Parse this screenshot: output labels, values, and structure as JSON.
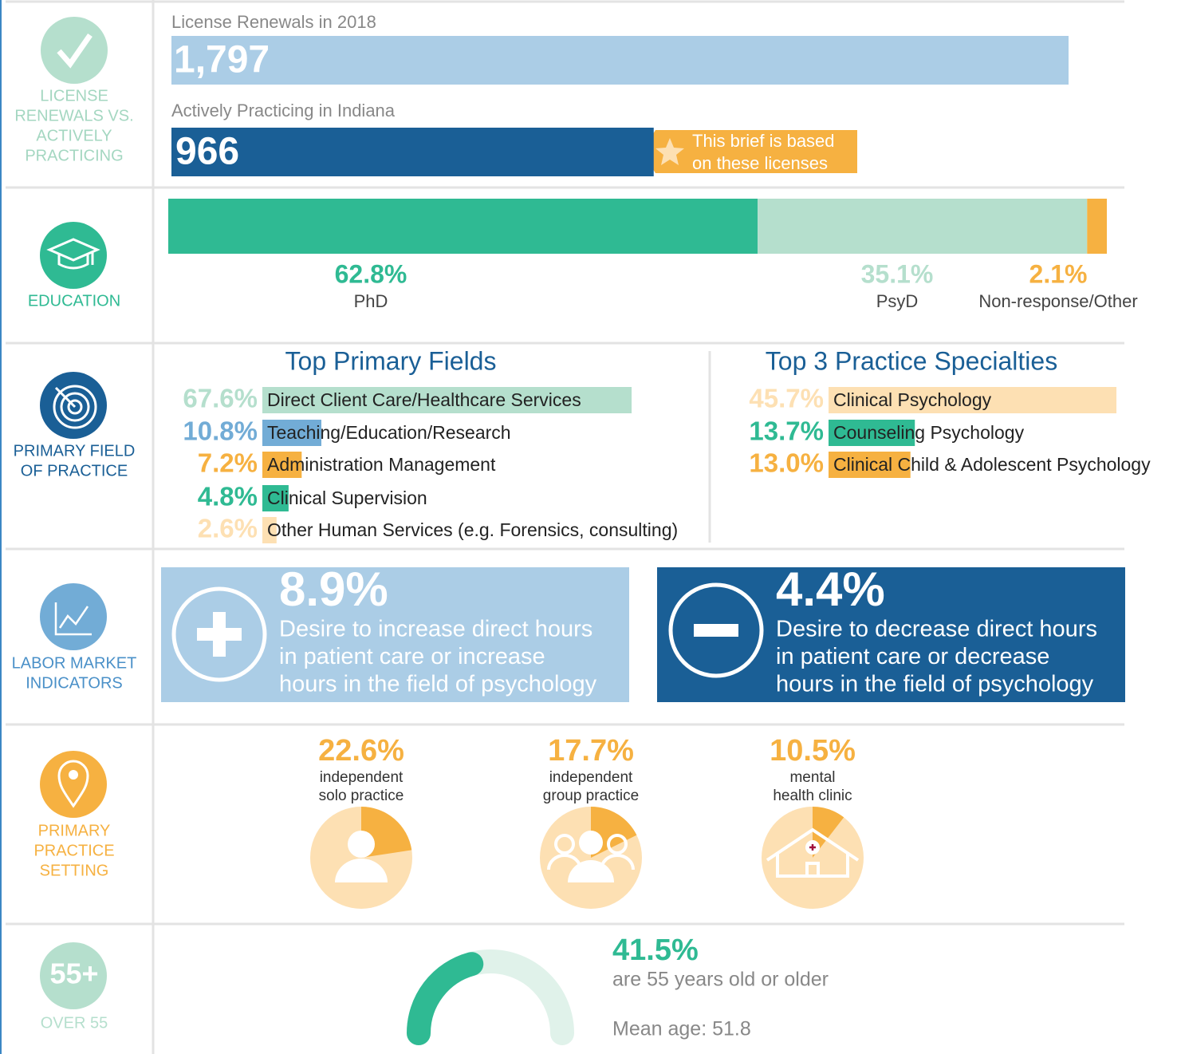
{
  "license": {
    "side_label": [
      "LICENSE",
      "RENEWALS VS.",
      "ACTIVELY",
      "PRACTICING"
    ],
    "renewals": {
      "label": "License Renewals in 2018",
      "value": 1797,
      "value_label": "1,797"
    },
    "practicing": {
      "label": "Actively Practicing in Indiana",
      "value": 966
    },
    "callout": [
      "This brief is based",
      "on these licenses"
    ]
  },
  "education": {
    "side_label": [
      "EDUCATION"
    ],
    "segments": [
      {
        "name": "PhD",
        "value": 62.8,
        "value_label": "62.8%",
        "color": "#2fba93"
      },
      {
        "name": "PsyD",
        "value": 35.1,
        "value_label": "35.1%",
        "color": "#b5dfcd"
      },
      {
        "name": "Non-response/Other",
        "value": 2.1,
        "value_label": "2.1%",
        "color": "#f6b141"
      }
    ]
  },
  "fields": {
    "side_label": [
      "PRIMARY FIELD",
      "OF PRACTICE"
    ],
    "title": "Top Primary Fields",
    "items": [
      {
        "name": "Direct Client Care/Healthcare Services",
        "value": 67.6,
        "value_label": "67.6%",
        "color": "#b5dfcd"
      },
      {
        "name": "Teaching/Education/Research",
        "value": 10.8,
        "value_label": "10.8%",
        "color": "#72acd6"
      },
      {
        "name": "Administration Management",
        "value": 7.2,
        "value_label": "7.2%",
        "color": "#f6b141"
      },
      {
        "name": "Clinical Supervision",
        "value": 4.8,
        "value_label": "4.8%",
        "color": "#2fba93"
      },
      {
        "name": "Other Human Services (e.g. Forensics, consulting)",
        "value": 2.6,
        "value_label": "2.6%",
        "color": "#fde0b3"
      }
    ]
  },
  "specialties": {
    "title": "Top 3 Practice Specialties",
    "items": [
      {
        "name": "Clinical Psychology",
        "value": 45.7,
        "value_label": "45.7%",
        "color": "#fde0b3"
      },
      {
        "name": "Counseling Psychology",
        "value": 13.7,
        "value_label": "13.7%",
        "color": "#2fba93"
      },
      {
        "name": "Clinical Child & Adolescent Psychology",
        "value": 13.0,
        "value_label": "13.0%",
        "color": "#f6b141"
      }
    ]
  },
  "labor": {
    "side_label": [
      "LABOR MARKET",
      "INDICATORS"
    ],
    "items": [
      {
        "value": 8.9,
        "value_label": "8.9%",
        "lines": [
          "Desire to increase direct hours",
          "in patient care or increase",
          "hours in the field of psychology"
        ]
      },
      {
        "value": 4.4,
        "value_label": "4.4%",
        "lines": [
          "Desire to decrease direct hours",
          "in patient care or decrease",
          "hours in the field of psychology"
        ]
      }
    ]
  },
  "setting": {
    "side_label": [
      "PRIMARY",
      "PRACTICE",
      "SETTING"
    ],
    "items": [
      {
        "value": 22.6,
        "value_label": "22.6%",
        "lines": [
          "independent",
          "solo practice"
        ]
      },
      {
        "value": 17.7,
        "value_label": "17.7%",
        "lines": [
          "independent",
          "group practice"
        ]
      },
      {
        "value": 10.5,
        "value_label": "10.5%",
        "lines": [
          "mental",
          "health clinic"
        ]
      }
    ]
  },
  "age": {
    "side_label": [
      "OVER 55"
    ],
    "icon": "55+",
    "value": 41.5,
    "value_label": "41.5%",
    "text": "are 55 years old or older",
    "mean": "Mean age: 51.8"
  }
}
